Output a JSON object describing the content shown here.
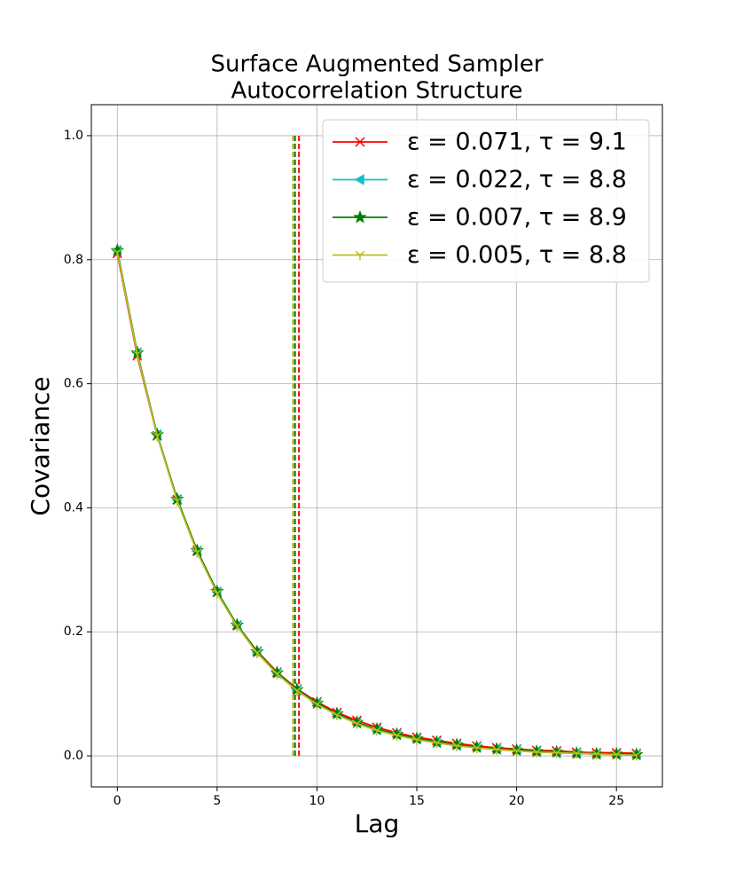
{
  "chart_data": {
    "type": "line",
    "title": [
      "Surface Augmented Sampler",
      "Autocorrelation Structure"
    ],
    "x_label": "Lag",
    "y_label": "Covariance",
    "x": [
      0,
      1,
      2,
      3,
      4,
      5,
      6,
      7,
      8,
      9,
      10,
      11,
      12,
      13,
      14,
      15,
      16,
      17,
      18,
      19,
      20,
      21,
      22,
      23,
      24,
      25,
      26
    ],
    "xlim": [
      -1.3,
      27.3
    ],
    "xticks": [
      0,
      5,
      10,
      15,
      20,
      25
    ],
    "ylim": [
      -0.05,
      1.05
    ],
    "yticks": [
      {
        "value": 0,
        "label": "0.0"
      },
      0.2,
      0.4,
      0.6,
      0.8,
      {
        "value": 1,
        "label": "1.0"
      }
    ],
    "grid": true,
    "legend": "upper right",
    "vline_range": [
      0,
      1
    ],
    "series": [
      {
        "name": "ε = 0.071, τ = 9.1",
        "color": "#ff0000",
        "marker": "x",
        "tau": 9.1,
        "values": [
          0.81,
          0.645,
          0.516,
          0.413,
          0.331,
          0.264,
          0.211,
          0.169,
          0.135,
          0.108,
          0.087,
          0.07,
          0.057,
          0.046,
          0.037,
          0.03,
          0.025,
          0.02,
          0.016,
          0.013,
          0.011,
          0.009,
          0.008,
          0.006,
          0.005,
          0.005,
          0.004
        ]
      },
      {
        "name": "ε = 0.022, τ = 8.8",
        "color": "#17becf",
        "marker": "<",
        "tau": 8.8,
        "values": [
          0.815,
          0.65,
          0.518,
          0.413,
          0.33,
          0.264,
          0.21,
          0.167,
          0.133,
          0.106,
          0.084,
          0.067,
          0.053,
          0.042,
          0.034,
          0.027,
          0.022,
          0.017,
          0.014,
          0.011,
          0.009,
          0.007,
          0.005,
          0.004,
          0.003,
          0.002,
          0.002
        ]
      },
      {
        "name": "ε = 0.007, τ = 8.9",
        "color": "#008000",
        "marker": "*",
        "tau": 8.9,
        "values": [
          0.815,
          0.65,
          0.518,
          0.414,
          0.331,
          0.265,
          0.211,
          0.168,
          0.134,
          0.107,
          0.085,
          0.068,
          0.054,
          0.043,
          0.035,
          0.028,
          0.022,
          0.018,
          0.014,
          0.011,
          0.009,
          0.007,
          0.006,
          0.004,
          0.003,
          0.003,
          0.002
        ]
      },
      {
        "name": "ε = 0.005, τ = 8.8",
        "color": "#bcbd22",
        "marker": "1",
        "tau": 8.8,
        "values": [
          0.812,
          0.648,
          0.516,
          0.411,
          0.328,
          0.262,
          0.209,
          0.166,
          0.132,
          0.105,
          0.083,
          0.066,
          0.052,
          0.041,
          0.033,
          0.026,
          0.021,
          0.016,
          0.013,
          0.01,
          0.008,
          0.006,
          0.005,
          0.004,
          0.003,
          0.002,
          0.001
        ]
      }
    ]
  }
}
